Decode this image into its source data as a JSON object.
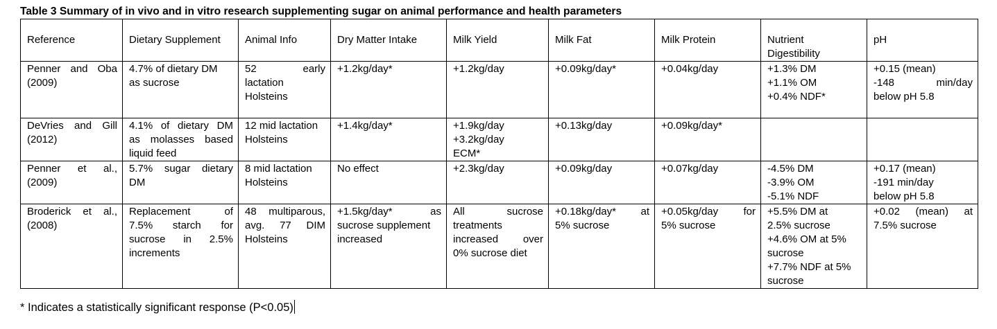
{
  "title": "Table 3 Summary of in vivo and in vitro research supplementing sugar on animal performance and health parameters",
  "headers": {
    "reference": "Reference",
    "supplement": "Dietary Supplement",
    "animal": "Animal Info",
    "dmi": "Dry Matter Intake",
    "milk_yield": "Milk Yield",
    "milk_fat": "Milk Fat",
    "milk_protein": "Milk Protein",
    "digestibility": [
      "Nutrient",
      "Digestibility"
    ],
    "ph": "pH"
  },
  "rows": [
    {
      "reference": [
        "Penner and Oba",
        "(2009)"
      ],
      "supplement": [
        "4.7% of dietary DM",
        "as sucrose"
      ],
      "animal": [
        "52 early",
        "lactation",
        "Holsteins"
      ],
      "dmi": [
        "+1.2kg/day*"
      ],
      "milk_yield": [
        "+1.2kg/day"
      ],
      "milk_fat": [
        "+0.09kg/day*"
      ],
      "milk_protein": [
        "+0.04kg/day"
      ],
      "digestibility": [
        "+1.3% DM",
        "+1.1% OM",
        "+0.4% NDF*"
      ],
      "ph": [
        "+0.15 (mean)",
        "-148 min/day",
        "below pH 5.8"
      ]
    },
    {
      "reference": [
        "DeVries and Gill",
        "(2012)"
      ],
      "supplement": [
        "4.1% of dietary DM",
        "as molasses based",
        "liquid feed"
      ],
      "animal": [
        "12 mid lactation",
        "Holsteins"
      ],
      "dmi": [
        "+1.4kg/day*"
      ],
      "milk_yield": [
        "+1.9kg/day",
        "+3.2kg/day",
        "ECM*"
      ],
      "milk_fat": [
        "+0.13kg/day"
      ],
      "milk_protein": [
        "+0.09kg/day*"
      ],
      "digestibility": [],
      "ph": []
    },
    {
      "reference": [
        "Penner et al.,",
        "(2009)"
      ],
      "supplement": [
        "5.7% sugar dietary",
        "DM"
      ],
      "animal": [
        "8 mid lactation",
        "Holsteins"
      ],
      "dmi": [
        "No effect"
      ],
      "milk_yield": [
        "+2.3kg/day"
      ],
      "milk_fat": [
        "+0.09kg/day"
      ],
      "milk_protein": [
        "+0.07kg/day"
      ],
      "digestibility": [
        "-4.5% DM",
        "-3.9% OM",
        "-5.1% NDF"
      ],
      "ph": [
        "+0.17 (mean)",
        "-191 min/day",
        "below pH 5.8"
      ]
    },
    {
      "reference": [
        "Broderick et al.,",
        "(2008)"
      ],
      "supplement": [
        "Replacement of",
        "7.5% starch for",
        "sucrose in 2.5%",
        "increments"
      ],
      "animal": [
        "48 multiparous,",
        "avg. 77 DIM",
        "Holsteins"
      ],
      "dmi": [
        "+1.5kg/day* as",
        "sucrose supplement",
        "increased"
      ],
      "milk_yield": [
        "All sucrose",
        "treatments",
        "increased over",
        "0% sucrose diet"
      ],
      "milk_fat": [
        "+0.18kg/day* at",
        "5% sucrose"
      ],
      "milk_protein": [
        "+0.05kg/day for",
        "5% sucrose"
      ],
      "digestibility": [
        "+5.5% DM at",
        "2.5% sucrose",
        "+4.6% OM at 5%",
        "sucrose",
        "+7.7% NDF at 5%",
        "sucrose"
      ],
      "ph": [
        "+0.02 (mean) at",
        "7.5% sucrose"
      ]
    }
  ],
  "footnote": "* Indicates a statistically significant response (P<0.05)"
}
